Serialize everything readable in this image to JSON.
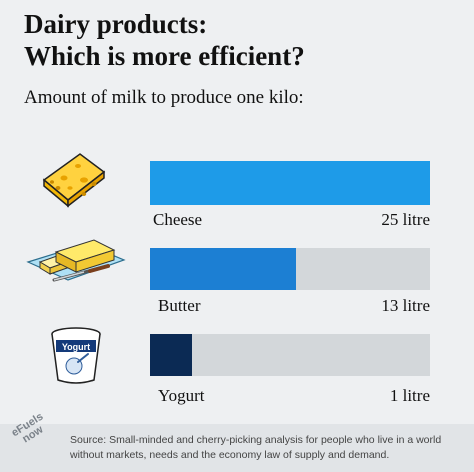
{
  "title_line1": "Dairy products:",
  "title_line2": "Which is more efficient?",
  "subtitle": "Amount of milk to produce one kilo:",
  "chart_data": {
    "type": "bar",
    "orientation": "horizontal",
    "categories": [
      "Cheese",
      "Butter",
      "Yogurt"
    ],
    "values": [
      25,
      13,
      1
    ],
    "value_labels": [
      "25 litre",
      "13 litre",
      "1 litre"
    ],
    "xlim": [
      0,
      25
    ],
    "colors": [
      "#1e9be8",
      "#1c7fd3",
      "#0b2a54"
    ],
    "track_color": "#d3d7da",
    "grid": false
  },
  "icons": [
    "cheese-icon",
    "butter-icon",
    "yogurt-icon"
  ],
  "yogurt_cup_label": "Yogurt",
  "logo_line1": "eFuels",
  "logo_line2": "now",
  "source": "Source: Small-minded and cherry-picking analysis for people who live in a world without markets, needs and the economy law of supply and demand."
}
